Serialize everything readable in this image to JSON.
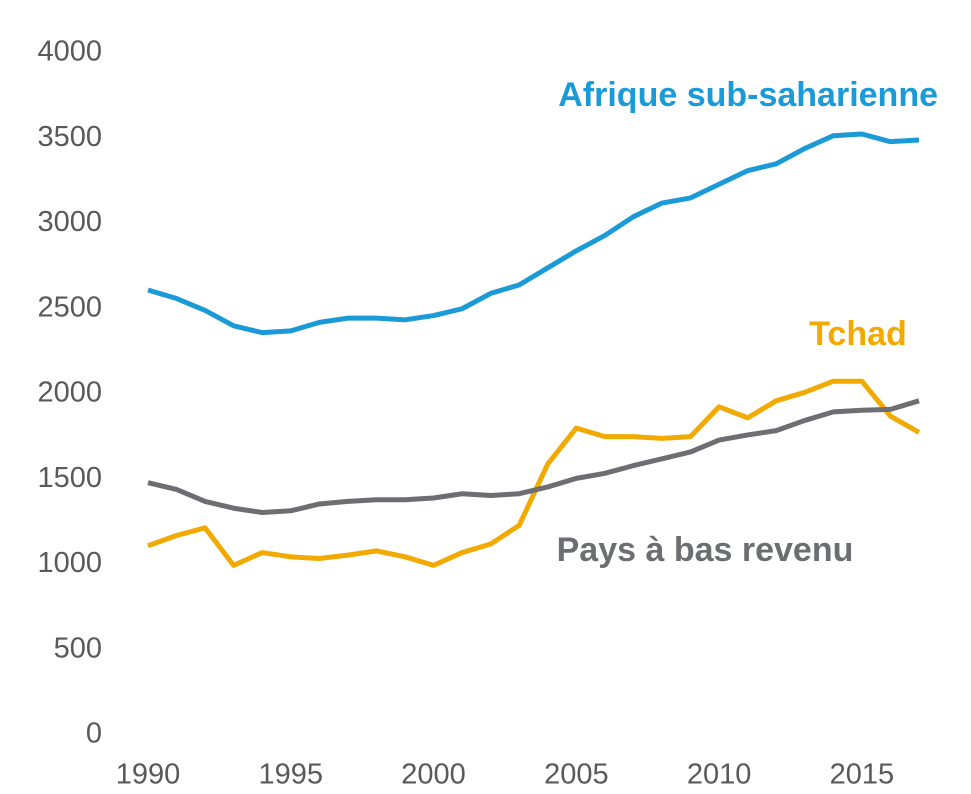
{
  "chart_data": {
    "type": "line",
    "x": [
      1990,
      1991,
      1992,
      1993,
      1994,
      1995,
      1996,
      1997,
      1998,
      1999,
      2000,
      2001,
      2002,
      2003,
      2004,
      2005,
      2006,
      2007,
      2008,
      2009,
      2010,
      2011,
      2012,
      2013,
      2014,
      2015,
      2016,
      2017
    ],
    "series": [
      {
        "name": "Afrique sub-saharienne",
        "color": "#1a9bd7",
        "values": [
          2610,
          2560,
          2490,
          2400,
          2360,
          2370,
          2420,
          2445,
          2445,
          2435,
          2460,
          2500,
          2590,
          2640,
          2740,
          2840,
          2930,
          3040,
          3120,
          3150,
          3230,
          3310,
          3350,
          3440,
          3515,
          3525,
          3480,
          3490
        ]
      },
      {
        "name": "Tchad",
        "color": "#f2a900",
        "values": [
          1110,
          1170,
          1215,
          995,
          1070,
          1045,
          1035,
          1055,
          1080,
          1045,
          995,
          1070,
          1120,
          1230,
          1590,
          1800,
          1750,
          1750,
          1740,
          1750,
          1925,
          1860,
          1960,
          2010,
          2075,
          2075,
          1870,
          1775
        ]
      },
      {
        "name": "Pays à bas revenu",
        "color": "#6d6e71",
        "values": [
          1480,
          1440,
          1370,
          1330,
          1305,
          1315,
          1355,
          1370,
          1380,
          1380,
          1390,
          1415,
          1405,
          1415,
          1455,
          1505,
          1535,
          1580,
          1620,
          1660,
          1730,
          1760,
          1785,
          1845,
          1895,
          1905,
          1910,
          1960
        ]
      }
    ],
    "xlim": [
      1990,
      2017
    ],
    "xticks": [
      1990,
      1995,
      2000,
      2005,
      2010,
      2015
    ],
    "ylim": [
      0,
      4000
    ],
    "yticks": [
      0,
      500,
      1000,
      1500,
      2000,
      2500,
      3000,
      3500,
      4000
    ],
    "grid": false
  }
}
